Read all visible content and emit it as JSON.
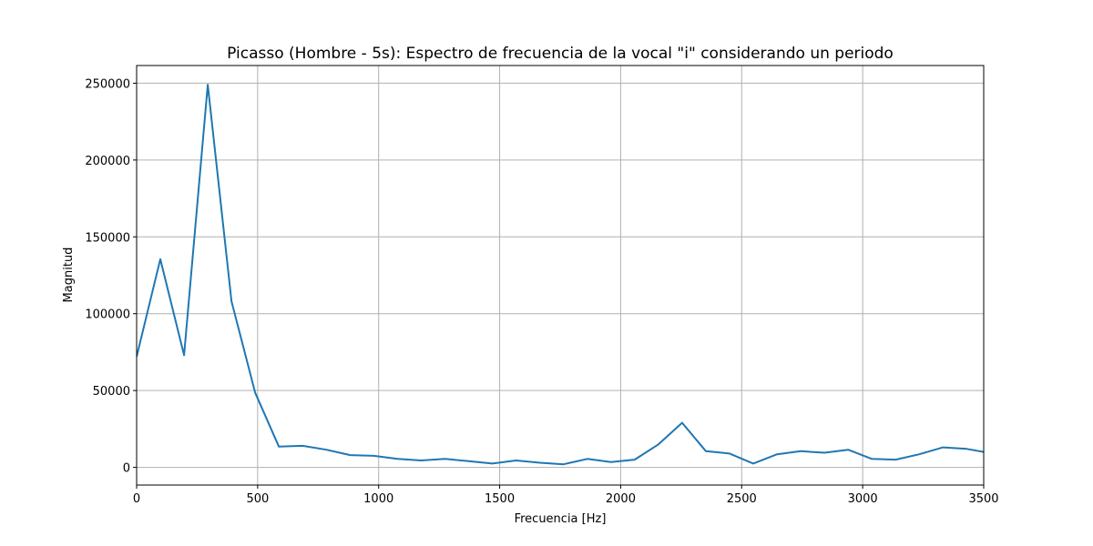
{
  "chart_data": {
    "type": "line",
    "title": "Picasso (Hombre - 5s): Espectro de frecuencia de la vocal \"i\" considerando un periodo",
    "xlabel": "Frecuencia [Hz]",
    "ylabel": "Magnitud",
    "xlim": [
      0,
      3500
    ],
    "ylim": [
      -11500,
      261500
    ],
    "x_ticks": [
      0,
      500,
      1000,
      1500,
      2000,
      2500,
      3000,
      3500
    ],
    "y_ticks": [
      0,
      50000,
      100000,
      150000,
      200000,
      250000
    ],
    "grid": true,
    "series": [
      {
        "color": "#1f77b4",
        "x": [
          0,
          98,
          196,
          294,
          392,
          490,
          588,
          686,
          784,
          882,
          980,
          1078,
          1176,
          1274,
          1372,
          1470,
          1568,
          1666,
          1764,
          1862,
          1960,
          2058,
          2156,
          2254,
          2352,
          2450,
          2548,
          2646,
          2744,
          2842,
          2940,
          3038,
          3136,
          3234,
          3332,
          3430,
          3500
        ],
        "values": [
          72000,
          135500,
          73000,
          249000,
          108000,
          48500,
          13500,
          14000,
          11500,
          8000,
          7500,
          5500,
          4500,
          5500,
          4000,
          2500,
          4500,
          3000,
          2000,
          5500,
          3500,
          5000,
          15000,
          29000,
          10500,
          9000,
          2500,
          8500,
          10500,
          9500,
          11500,
          5500,
          5000,
          8500,
          13000,
          12000,
          10000
        ]
      }
    ]
  }
}
